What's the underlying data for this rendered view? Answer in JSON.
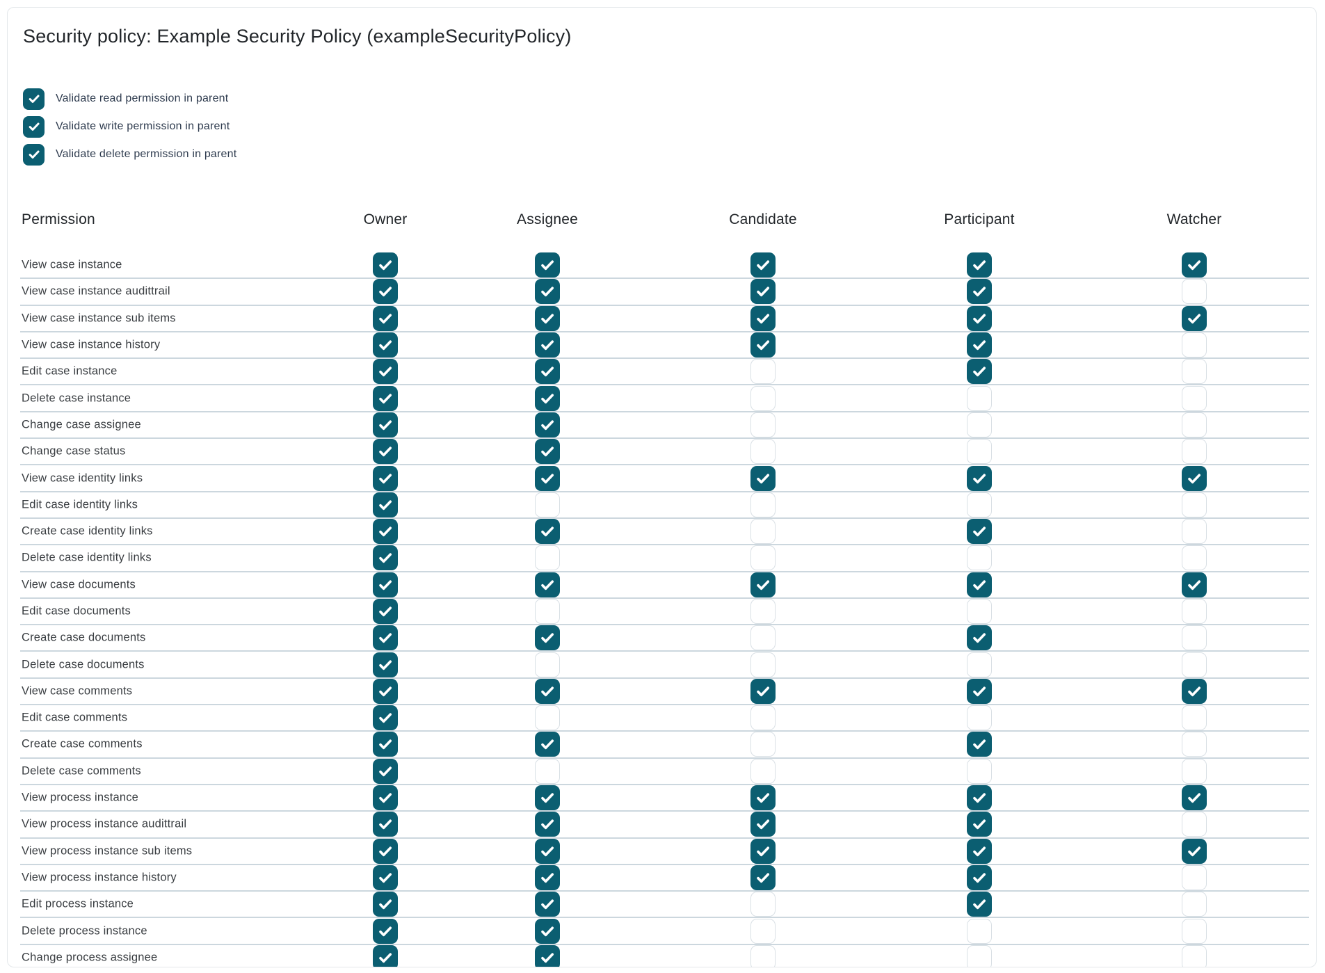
{
  "page": {
    "title": "Security policy: Example Security Policy (exampleSecurityPolicy)"
  },
  "colors": {
    "accent_teal": "#0b5e71",
    "row_separator": "#ccd7de",
    "unchecked_border": "#d9e0e5"
  },
  "options": [
    {
      "label": "Validate read permission in parent",
      "checked": true
    },
    {
      "label": "Validate write permission in parent",
      "checked": true
    },
    {
      "label": "Validate delete permission in parent",
      "checked": true
    }
  ],
  "table": {
    "columns": [
      "Permission",
      "Owner",
      "Assignee",
      "Candidate",
      "Participant",
      "Watcher"
    ],
    "roles": [
      "owner",
      "assignee",
      "candidate",
      "participant",
      "watcher"
    ],
    "rows": [
      {
        "permission": "View case instance",
        "owner": true,
        "assignee": true,
        "candidate": true,
        "participant": true,
        "watcher": true
      },
      {
        "permission": "View case instance audittrail",
        "owner": true,
        "assignee": true,
        "candidate": true,
        "participant": true,
        "watcher": false
      },
      {
        "permission": "View case instance sub items",
        "owner": true,
        "assignee": true,
        "candidate": true,
        "participant": true,
        "watcher": true
      },
      {
        "permission": "View case instance history",
        "owner": true,
        "assignee": true,
        "candidate": true,
        "participant": true,
        "watcher": false
      },
      {
        "permission": "Edit case instance",
        "owner": true,
        "assignee": true,
        "candidate": false,
        "participant": true,
        "watcher": false
      },
      {
        "permission": "Delete case instance",
        "owner": true,
        "assignee": true,
        "candidate": false,
        "participant": false,
        "watcher": false
      },
      {
        "permission": "Change case assignee",
        "owner": true,
        "assignee": true,
        "candidate": false,
        "participant": false,
        "watcher": false
      },
      {
        "permission": "Change case status",
        "owner": true,
        "assignee": true,
        "candidate": false,
        "participant": false,
        "watcher": false
      },
      {
        "permission": "View case identity links",
        "owner": true,
        "assignee": true,
        "candidate": true,
        "participant": true,
        "watcher": true
      },
      {
        "permission": "Edit case identity links",
        "owner": true,
        "assignee": false,
        "candidate": false,
        "participant": false,
        "watcher": false
      },
      {
        "permission": "Create case identity links",
        "owner": true,
        "assignee": true,
        "candidate": false,
        "participant": true,
        "watcher": false
      },
      {
        "permission": "Delete case identity links",
        "owner": true,
        "assignee": false,
        "candidate": false,
        "participant": false,
        "watcher": false
      },
      {
        "permission": "View case documents",
        "owner": true,
        "assignee": true,
        "candidate": true,
        "participant": true,
        "watcher": true
      },
      {
        "permission": "Edit case documents",
        "owner": true,
        "assignee": false,
        "candidate": false,
        "participant": false,
        "watcher": false
      },
      {
        "permission": "Create case documents",
        "owner": true,
        "assignee": true,
        "candidate": false,
        "participant": true,
        "watcher": false
      },
      {
        "permission": "Delete case documents",
        "owner": true,
        "assignee": false,
        "candidate": false,
        "participant": false,
        "watcher": false
      },
      {
        "permission": "View case comments",
        "owner": true,
        "assignee": true,
        "candidate": true,
        "participant": true,
        "watcher": true
      },
      {
        "permission": "Edit case comments",
        "owner": true,
        "assignee": false,
        "candidate": false,
        "participant": false,
        "watcher": false
      },
      {
        "permission": "Create case comments",
        "owner": true,
        "assignee": true,
        "candidate": false,
        "participant": true,
        "watcher": false
      },
      {
        "permission": "Delete case comments",
        "owner": true,
        "assignee": false,
        "candidate": false,
        "participant": false,
        "watcher": false
      },
      {
        "permission": "View process instance",
        "owner": true,
        "assignee": true,
        "candidate": true,
        "participant": true,
        "watcher": true
      },
      {
        "permission": "View process instance audittrail",
        "owner": true,
        "assignee": true,
        "candidate": true,
        "participant": true,
        "watcher": false
      },
      {
        "permission": "View process instance sub items",
        "owner": true,
        "assignee": true,
        "candidate": true,
        "participant": true,
        "watcher": true
      },
      {
        "permission": "View process instance history",
        "owner": true,
        "assignee": true,
        "candidate": true,
        "participant": true,
        "watcher": false
      },
      {
        "permission": "Edit process instance",
        "owner": true,
        "assignee": true,
        "candidate": false,
        "participant": true,
        "watcher": false
      },
      {
        "permission": "Delete process instance",
        "owner": true,
        "assignee": true,
        "candidate": false,
        "participant": false,
        "watcher": false
      },
      {
        "permission": "Change process assignee",
        "owner": true,
        "assignee": true,
        "candidate": false,
        "participant": false,
        "watcher": false
      }
    ]
  }
}
